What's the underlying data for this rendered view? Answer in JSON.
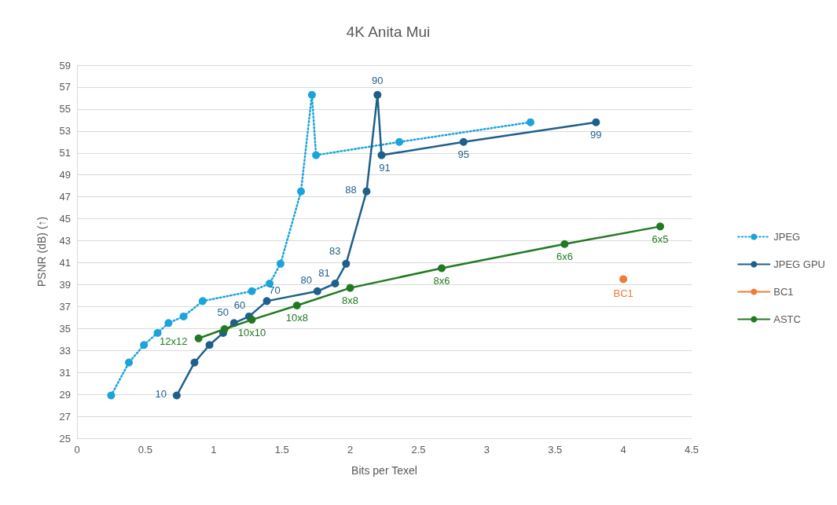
{
  "chart_data": {
    "type": "line",
    "title": "4K Anita Mui",
    "xlabel": "Bits per Texel",
    "ylabel": "PSNR (dB) (↑)",
    "xlim": [
      0,
      4.5
    ],
    "xticks": [
      0,
      0.5,
      1,
      1.5,
      2,
      2.5,
      3,
      3.5,
      4,
      4.5
    ],
    "ylim": [
      25,
      59
    ],
    "yticks": [
      25,
      27,
      29,
      31,
      33,
      35,
      37,
      39,
      41,
      43,
      45,
      47,
      49,
      51,
      53,
      55,
      57,
      59
    ],
    "grid": "y",
    "legend": "right",
    "marker": "circle",
    "series": [
      {
        "name": "JPEG",
        "color": "#1aa3dd",
        "line_style": "dotted",
        "x": [
          0.25,
          0.38,
          0.49,
          0.59,
          0.67,
          0.78,
          0.92,
          1.28,
          1.41,
          1.49,
          1.64,
          1.72,
          1.75,
          2.36,
          3.32
        ],
        "values": [
          28.9,
          31.9,
          33.5,
          34.6,
          35.5,
          36.1,
          37.5,
          38.4,
          39.1,
          40.9,
          47.5,
          56.3,
          50.8,
          52.0,
          53.8
        ]
      },
      {
        "name": "JPEG GPU",
        "color": "#1f5f8b",
        "line_style": "solid",
        "x": [
          0.73,
          0.86,
          0.97,
          1.07,
          1.15,
          1.26,
          1.39,
          1.76,
          1.89,
          1.97,
          2.12,
          2.2,
          2.23,
          2.83,
          3.8
        ],
        "values": [
          28.9,
          31.9,
          33.5,
          34.6,
          35.5,
          36.1,
          37.5,
          38.4,
          39.1,
          40.9,
          47.5,
          56.3,
          50.8,
          52.0,
          53.8
        ]
      },
      {
        "name": "BC1",
        "color": "#f07b35",
        "line_style": "solid",
        "x": [
          4.0
        ],
        "values": [
          39.5
        ]
      },
      {
        "name": "ASTC",
        "color": "#217a21",
        "line_style": "solid",
        "x": [
          0.89,
          1.08,
          1.28,
          1.61,
          2.0,
          2.67,
          3.57,
          4.27
        ],
        "values": [
          34.1,
          34.95,
          35.8,
          37.1,
          38.7,
          40.5,
          42.7,
          44.3
        ]
      }
    ],
    "annotations": [
      {
        "text": "10",
        "x": 0.73,
        "y": 28.9
      },
      {
        "text": "50",
        "x": 1.15,
        "y": 35.5
      },
      {
        "text": "60",
        "x": 1.26,
        "y": 36.1
      },
      {
        "text": "70",
        "x": 1.39,
        "y": 37.5
      },
      {
        "text": "80",
        "x": 1.76,
        "y": 38.4
      },
      {
        "text": "81",
        "x": 1.89,
        "y": 39.1
      },
      {
        "text": "83",
        "x": 1.97,
        "y": 40.9
      },
      {
        "text": "88",
        "x": 2.12,
        "y": 47.5
      },
      {
        "text": "90",
        "x": 2.2,
        "y": 56.3
      },
      {
        "text": "91",
        "x": 2.23,
        "y": 50.8
      },
      {
        "text": "95",
        "x": 2.83,
        "y": 52.0
      },
      {
        "text": "99",
        "x": 3.8,
        "y": 53.8
      },
      {
        "text": "BC1",
        "x": 4.0,
        "y": 39.5
      },
      {
        "text": "12x12",
        "x": 0.89,
        "y": 34.1
      },
      {
        "text": "10x10",
        "x": 1.28,
        "y": 35.8
      },
      {
        "text": "10x8",
        "x": 1.61,
        "y": 37.1
      },
      {
        "text": "8x8",
        "x": 2.0,
        "y": 38.7
      },
      {
        "text": "8x6",
        "x": 2.67,
        "y": 40.5
      },
      {
        "text": "6x6",
        "x": 3.57,
        "y": 42.7
      },
      {
        "text": "6x5",
        "x": 4.27,
        "y": 44.3
      }
    ]
  }
}
